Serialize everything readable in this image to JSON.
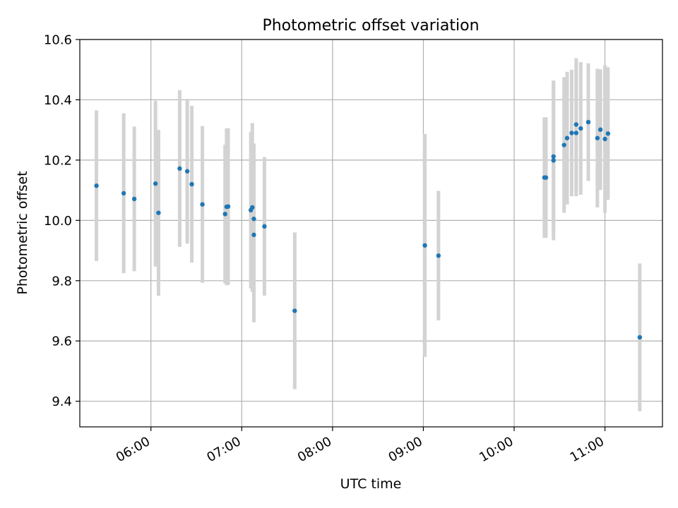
{
  "chart_data": {
    "type": "scatter",
    "title": "Photometric offset variation",
    "xlabel": "UTC time",
    "ylabel": "Photometric offset",
    "xlim": [
      "05:13",
      "11:38"
    ],
    "ylim": [
      9.315,
      10.6
    ],
    "grid": true,
    "legend": "none",
    "x_ticks": [
      "06:00",
      "07:00",
      "08:00",
      "09:00",
      "10:00",
      "11:00"
    ],
    "y_ticks": [
      9.4,
      9.6,
      9.8,
      10.0,
      10.2,
      10.4,
      10.6
    ],
    "colors": {
      "points": "#1f77b4",
      "errorbars": "#d3d3d3",
      "grid": "#b0b0b0"
    },
    "series": [
      {
        "x": [
          "05:24",
          "05:42",
          "05:49",
          "06:03",
          "06:05",
          "06:19",
          "06:24",
          "06:27",
          "06:34",
          "06:49",
          "06:50",
          "06:51",
          "07:06",
          "07:07",
          "07:08",
          "07:08",
          "07:15",
          "07:35",
          "09:01",
          "09:10",
          "10:20",
          "10:21",
          "10:26",
          "10:26",
          "10:33",
          "10:35",
          "10:38",
          "10:41",
          "10:41",
          "10:44",
          "10:49",
          "10:55",
          "10:57",
          "11:00",
          "11:02",
          "11:23"
        ],
        "y": [
          10.115,
          10.09,
          10.071,
          10.122,
          10.025,
          10.172,
          10.163,
          10.12,
          10.053,
          10.021,
          10.045,
          10.046,
          10.034,
          10.043,
          10.005,
          9.952,
          9.98,
          9.7,
          9.917,
          9.883,
          10.142,
          10.142,
          10.212,
          10.199,
          10.25,
          10.273,
          10.29,
          10.318,
          10.29,
          10.305,
          10.326,
          10.273,
          10.301,
          10.27,
          10.288,
          9.612
        ],
        "yerr": [
          0.25,
          0.265,
          0.24,
          0.275,
          0.275,
          0.26,
          0.24,
          0.26,
          0.26,
          0.23,
          0.26,
          0.26,
          0.26,
          0.28,
          0.25,
          0.29,
          0.23,
          0.26,
          0.37,
          0.215,
          0.2,
          0.2,
          0.25,
          0.265,
          0.225,
          0.22,
          0.21,
          0.22,
          0.21,
          0.22,
          0.195,
          0.23,
          0.2,
          0.245,
          0.22,
          0.245
        ]
      }
    ]
  }
}
